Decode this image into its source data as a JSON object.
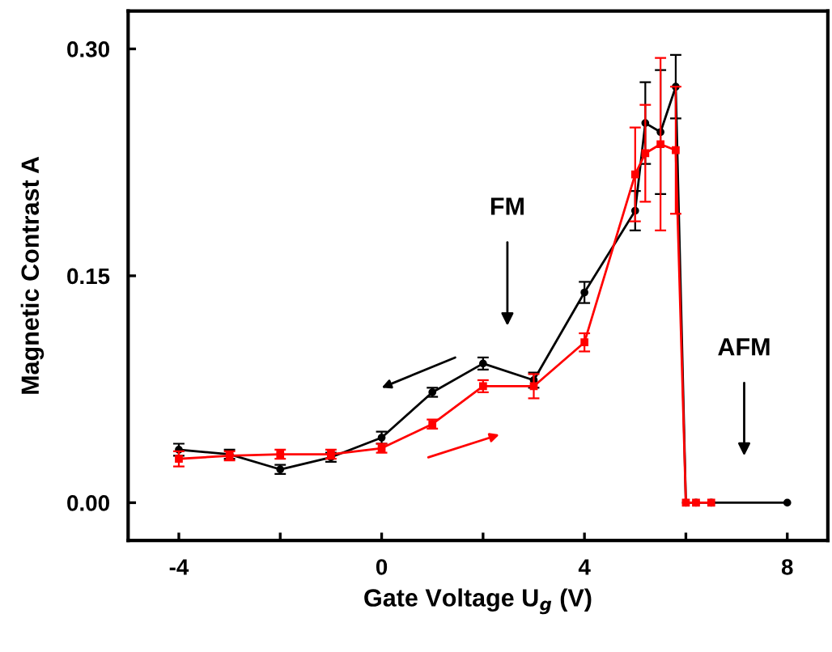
{
  "chart_data": {
    "type": "line",
    "xlabel": "Gate Voltage U$_{g}$ (V)",
    "ylabel": "Magnetic Contrast A",
    "xlim": [
      -5,
      8.8
    ],
    "xticks": [
      -4,
      {
        "value": -2,
        "label": null
      },
      0,
      {
        "value": 2,
        "label": null
      },
      4,
      {
        "value": 6,
        "label": null
      },
      8
    ],
    "ylim": [
      -0.025,
      0.325
    ],
    "yticks": [
      {
        "value": 0,
        "label": "0.00"
      },
      0.15,
      {
        "value": 0.3,
        "label": "0.30"
      }
    ],
    "grid": false,
    "series": [
      {
        "color": "#000000",
        "marker": "circle",
        "x": [
          -4,
          -3,
          -2,
          -1,
          0,
          1,
          2,
          3,
          4,
          5.0,
          5.2,
          5.5,
          5.8,
          6.0,
          6.2,
          6.5,
          8
        ],
        "values": [
          0.035,
          0.032,
          0.022,
          0.03,
          0.043,
          0.073,
          0.092,
          0.081,
          0.139,
          0.193,
          0.251,
          0.245,
          0.275,
          0,
          0,
          0,
          0
        ],
        "errors": [
          0.004,
          0.003,
          0.003,
          0.003,
          0.004,
          0.003,
          0.004,
          0.005,
          0.007,
          0.013,
          0.027,
          0.041,
          0.021,
          null,
          null,
          null,
          null
        ]
      },
      {
        "color": "#ff0000",
        "marker": "square",
        "x": [
          -4,
          -3,
          -2,
          -1,
          0,
          1,
          2,
          3,
          4,
          5.0,
          5.2,
          5.5,
          5.8,
          6.0,
          6.2,
          6.5
        ],
        "values": [
          0.029,
          0.031,
          0.032,
          0.032,
          0.036,
          0.052,
          0.077,
          0.077,
          0.106,
          0.217,
          0.231,
          0.237,
          0.233,
          0,
          0,
          0
        ],
        "errors": [
          0.005,
          0.003,
          0.003,
          0.003,
          0.003,
          0.003,
          0.004,
          0.008,
          0.006,
          0.031,
          0.032,
          0.057,
          0.042,
          null,
          null,
          null
        ]
      }
    ],
    "annotations": [
      "FM",
      "AFM"
    ]
  }
}
